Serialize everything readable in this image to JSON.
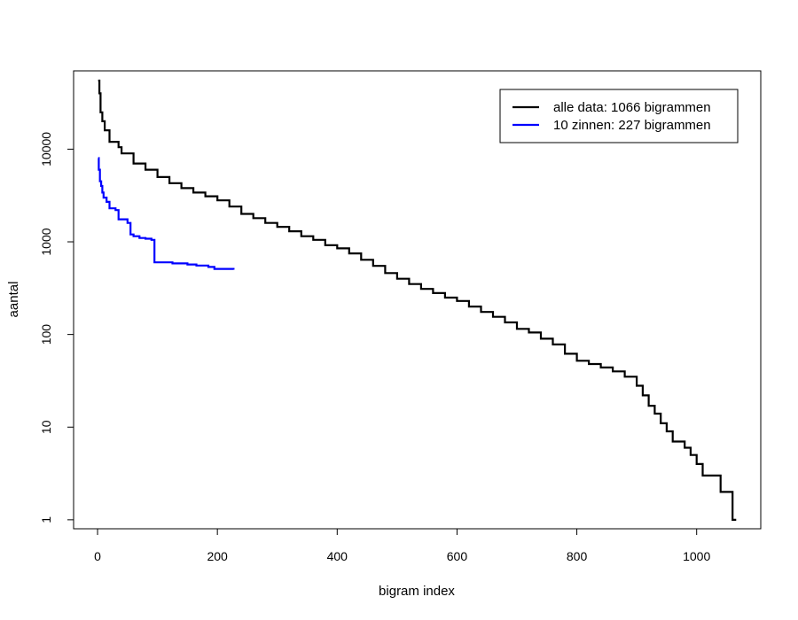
{
  "chart_data": {
    "type": "line",
    "title": "",
    "xlabel": "bigram index",
    "ylabel": "aantal",
    "x_ticks": [
      0,
      200,
      400,
      600,
      800,
      1000
    ],
    "y_ticks": [
      1,
      10,
      100,
      1000,
      10000
    ],
    "y_tick_labels": [
      "1",
      "10",
      "100",
      "1000",
      "10000"
    ],
    "xlim": [
      -40,
      1107
    ],
    "ylim": [
      0.8,
      70000
    ],
    "y_scale": "log",
    "grid": false,
    "legend_position": "top-right",
    "series": [
      {
        "name": "alle data: 1066 bigrammen",
        "color": "#000000",
        "points": [
          [
            1,
            55000
          ],
          [
            3,
            40000
          ],
          [
            5,
            25000
          ],
          [
            8,
            20000
          ],
          [
            12,
            16000
          ],
          [
            20,
            12000
          ],
          [
            35,
            10500
          ],
          [
            40,
            9000
          ],
          [
            60,
            7000
          ],
          [
            80,
            6000
          ],
          [
            100,
            5000
          ],
          [
            120,
            4300
          ],
          [
            140,
            3800
          ],
          [
            160,
            3400
          ],
          [
            180,
            3100
          ],
          [
            200,
            2800
          ],
          [
            220,
            2400
          ],
          [
            240,
            2000
          ],
          [
            260,
            1800
          ],
          [
            280,
            1600
          ],
          [
            300,
            1450
          ],
          [
            320,
            1300
          ],
          [
            340,
            1150
          ],
          [
            360,
            1050
          ],
          [
            380,
            920
          ],
          [
            400,
            850
          ],
          [
            420,
            750
          ],
          [
            440,
            640
          ],
          [
            460,
            550
          ],
          [
            480,
            460
          ],
          [
            500,
            400
          ],
          [
            520,
            350
          ],
          [
            540,
            310
          ],
          [
            560,
            280
          ],
          [
            580,
            250
          ],
          [
            600,
            230
          ],
          [
            620,
            200
          ],
          [
            640,
            175
          ],
          [
            660,
            155
          ],
          [
            680,
            135
          ],
          [
            700,
            115
          ],
          [
            720,
            105
          ],
          [
            740,
            90
          ],
          [
            760,
            78
          ],
          [
            780,
            62
          ],
          [
            800,
            52
          ],
          [
            820,
            48
          ],
          [
            840,
            44
          ],
          [
            860,
            40
          ],
          [
            880,
            35
          ],
          [
            900,
            28
          ],
          [
            910,
            22
          ],
          [
            920,
            17
          ],
          [
            930,
            14
          ],
          [
            940,
            11
          ],
          [
            950,
            9
          ],
          [
            960,
            7
          ],
          [
            970,
            7
          ],
          [
            980,
            6
          ],
          [
            990,
            5
          ],
          [
            1000,
            4
          ],
          [
            1010,
            3
          ],
          [
            1020,
            3
          ],
          [
            1040,
            2
          ],
          [
            1060,
            1
          ],
          [
            1066,
            1
          ]
        ]
      },
      {
        "name": "10 zinnen: 227 bigrammen",
        "color": "#0000ff",
        "points": [
          [
            1,
            8000
          ],
          [
            2,
            6000
          ],
          [
            4,
            4500
          ],
          [
            6,
            4000
          ],
          [
            8,
            3400
          ],
          [
            10,
            3000
          ],
          [
            15,
            2700
          ],
          [
            20,
            2300
          ],
          [
            30,
            2200
          ],
          [
            35,
            1750
          ],
          [
            50,
            1600
          ],
          [
            55,
            1200
          ],
          [
            60,
            1150
          ],
          [
            70,
            1100
          ],
          [
            80,
            1080
          ],
          [
            90,
            1050
          ],
          [
            95,
            600
          ],
          [
            125,
            585
          ],
          [
            150,
            570
          ],
          [
            165,
            555
          ],
          [
            185,
            535
          ],
          [
            195,
            510
          ],
          [
            227,
            500
          ]
        ]
      }
    ]
  }
}
